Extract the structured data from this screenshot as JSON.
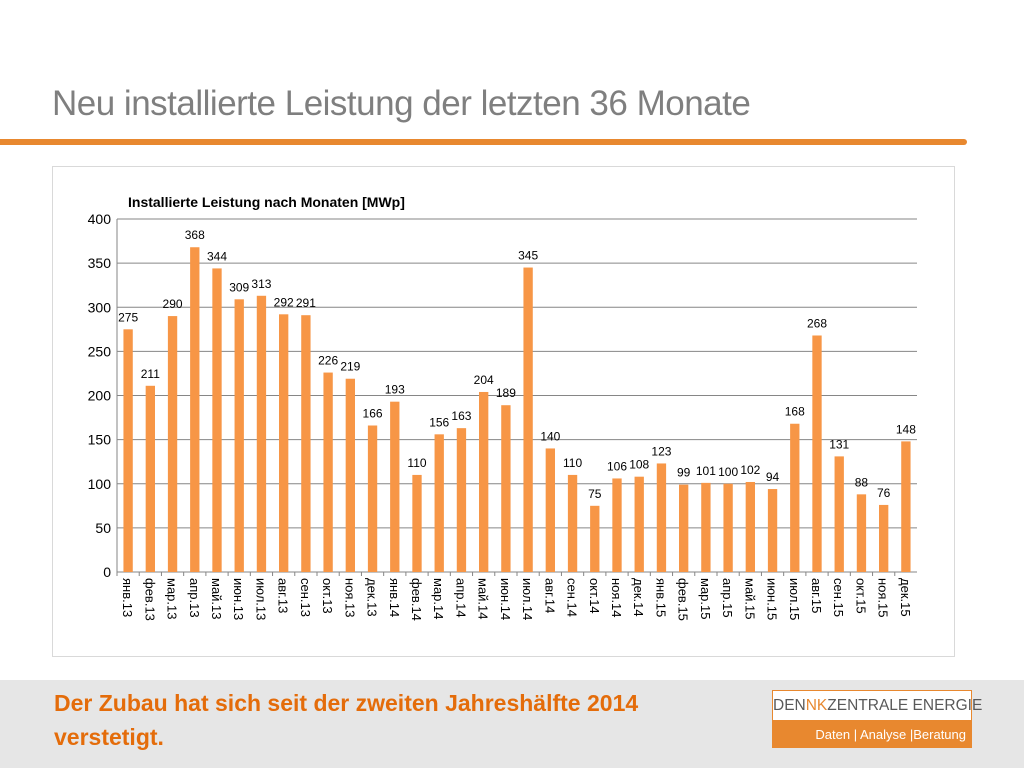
{
  "slide": {
    "title": "Neu installierte Leistung der letzten 36 Monate",
    "footer_text": "Der Zubau hat sich seit der zweiten Jahreshälfte 2014 verstetigt."
  },
  "logo": {
    "part1": "DEN",
    "part2": "NK",
    "part3": "ZENTRALE ENERGIE",
    "tagline": "Daten | Analyse |Beratung"
  },
  "colors": {
    "accent": "#e8882f",
    "bar": "#f79646",
    "footer_text": "#e46c0a",
    "title": "#7f7f7f"
  },
  "chart_data": {
    "type": "bar",
    "title": "Installierte Leistung nach Monaten [MWp]",
    "xlabel": "",
    "ylabel": "",
    "ylim": [
      0,
      400
    ],
    "yticks": [
      0,
      50,
      100,
      150,
      200,
      250,
      300,
      350,
      400
    ],
    "grid": true,
    "legend": "none",
    "categories": [
      "янв.13",
      "фев.13",
      "мар.13",
      "апр.13",
      "май.13",
      "июн.13",
      "июл.13",
      "авг.13",
      "сен.13",
      "окт.13",
      "ноя.13",
      "дек.13",
      "янв.14",
      "фев.14",
      "мар.14",
      "апр.14",
      "май.14",
      "июн.14",
      "июл.14",
      "авг.14",
      "сен.14",
      "окт.14",
      "ноя.14",
      "дек.14",
      "янв.15",
      "фев.15",
      "мар.15",
      "апр.15",
      "май.15",
      "июн.15",
      "июл.15",
      "авг.15",
      "сен.15",
      "окт.15",
      "ноя.15",
      "дек.15"
    ],
    "values": [
      275,
      211,
      290,
      368,
      344,
      309,
      313,
      292,
      291,
      226,
      219,
      166,
      193,
      110,
      156,
      163,
      204,
      189,
      345,
      140,
      110,
      75,
      106,
      108,
      123,
      99,
      101,
      100,
      102,
      94,
      168,
      268,
      131,
      88,
      76,
      148
    ]
  }
}
